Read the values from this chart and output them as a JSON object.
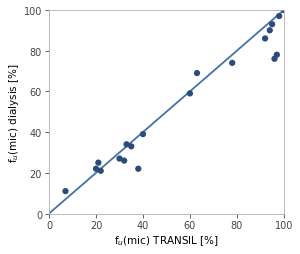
{
  "x_points": [
    7,
    20,
    21,
    22,
    30,
    32,
    33,
    35,
    38,
    40,
    60,
    63,
    78,
    92,
    94,
    95,
    96,
    97,
    98,
    100
  ],
  "y_points": [
    11,
    22,
    25,
    21,
    27,
    26,
    34,
    33,
    22,
    39,
    59,
    69,
    74,
    86,
    90,
    93,
    76,
    78,
    97,
    100
  ],
  "line_x": [
    0,
    100
  ],
  "line_y": [
    0,
    100
  ],
  "dot_color": "#2b4c7a",
  "line_color": "#4472a8",
  "xlabel": "f$_{u}$(mic) TRANSIL [%]",
  "ylabel": "f$_{u}$(mic) dialysis [%]",
  "xlim": [
    0,
    100
  ],
  "ylim": [
    0,
    100
  ],
  "xticks": [
    0,
    20,
    40,
    60,
    80,
    100
  ],
  "yticks": [
    0,
    20,
    40,
    60,
    80,
    100
  ],
  "bg_color": "#ffffff",
  "marker_size": 4.5,
  "line_width": 1.3,
  "xlabel_fontsize": 7.5,
  "ylabel_fontsize": 7.5,
  "tick_fontsize": 7
}
